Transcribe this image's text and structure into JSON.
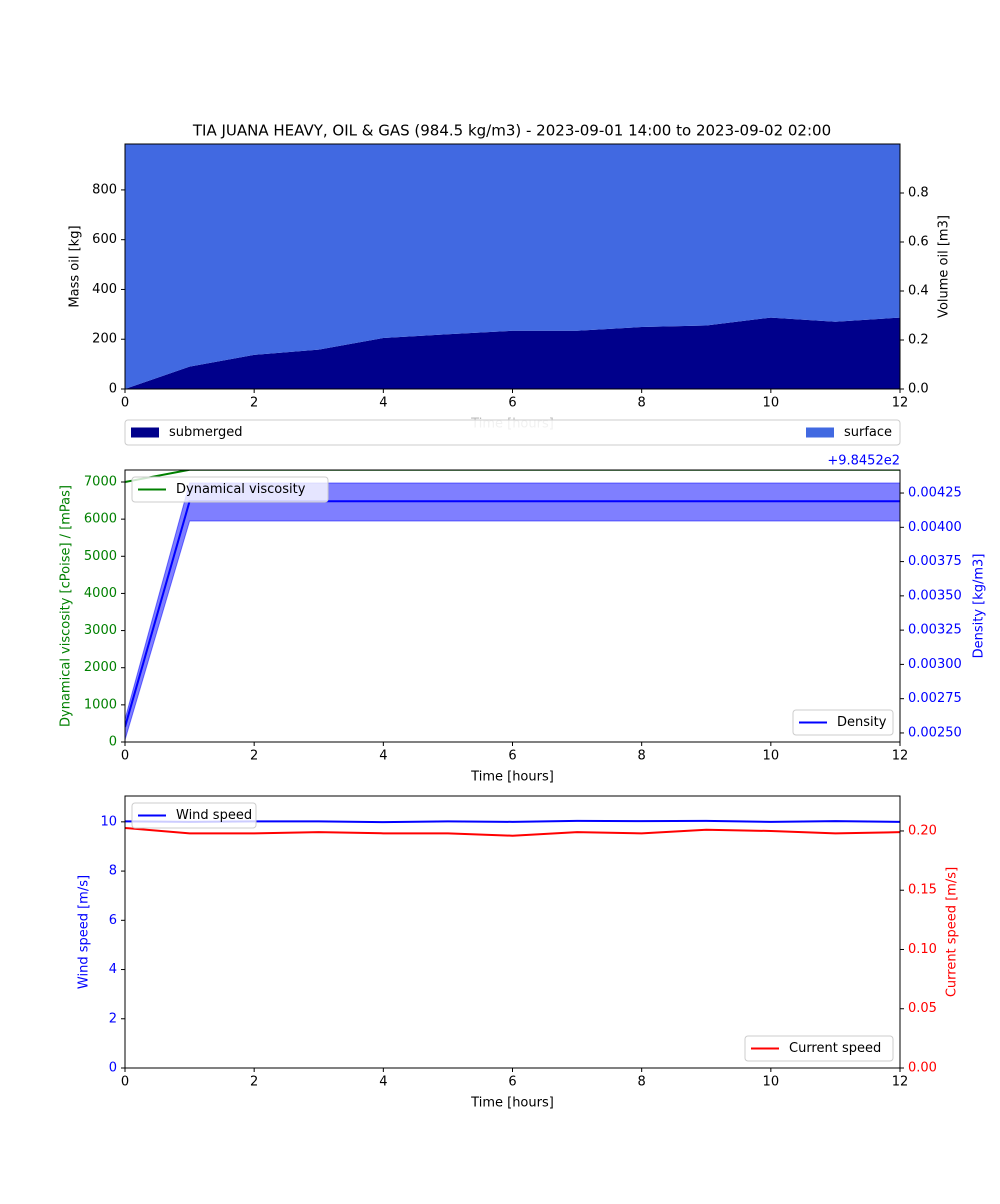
{
  "chart_data": [
    {
      "type": "area",
      "stacked": true,
      "title": "TIA JUANA HEAVY, OIL & GAS (984.5 kg/m3) - 2023-09-01 14:00 to 2023-09-02 02:00",
      "xlabel": "Time  [hours]",
      "ylabel": "Mass oil  [kg]",
      "y2label": "Volume oil [m3]",
      "x": [
        0,
        1,
        2,
        3,
        4,
        5,
        6,
        7,
        8,
        9,
        10,
        11,
        12
      ],
      "series": [
        {
          "name": "submerged",
          "color": "#00008b",
          "legend_loc": "below left",
          "values": [
            0,
            90,
            137,
            158,
            205,
            220,
            234,
            234,
            249,
            255,
            287,
            270,
            287
          ]
        },
        {
          "name": "surface",
          "color": "#4169e1",
          "legend_loc": "below right",
          "values": [
            984.5,
            894.5,
            847.5,
            826.5,
            779.5,
            764.5,
            750.5,
            750.5,
            735.5,
            729.5,
            697.5,
            714.5,
            697.5
          ]
        }
      ],
      "xlim": [
        0,
        12
      ],
      "xticks": [
        0,
        2,
        4,
        6,
        8,
        10,
        12
      ],
      "ylim": [
        0,
        984.5
      ],
      "yticks": [
        0,
        200,
        400,
        600,
        800
      ],
      "y2lim": [
        0,
        1
      ],
      "y2ticks": [
        {
          "value": 0,
          "label": "0.0"
        },
        0.2,
        0.4,
        0.6,
        0.8
      ],
      "ycolor": "#000000",
      "y2color": "#000000"
    },
    {
      "type": "line",
      "xlabel": "Time [hours]",
      "ylabel": "Dynamical viscosity  [cPoise] / [mPas]",
      "y2label": "Density  [kg/m3]",
      "y2_offset_label": "+9.8452e2",
      "x": [
        0,
        1,
        2,
        3,
        4,
        5,
        6,
        7,
        8,
        9,
        10,
        11,
        12
      ],
      "series": [
        {
          "name": "Dynamical viscosity",
          "color": "#008000",
          "legend_loc": "upper left",
          "values": [
            7000,
            7330,
            7330,
            7330,
            7330,
            7330,
            7330,
            7330,
            7330,
            7330,
            7330,
            7330,
            7330
          ]
        },
        {
          "name": "Density",
          "color": "#0000ff",
          "axis": "y2",
          "legend_loc": "lower right",
          "values": [
            0.002544,
            0.00419,
            0.00419,
            0.00419,
            0.00419,
            0.00419,
            0.00419,
            0.00419,
            0.00419,
            0.00419,
            0.00419,
            0.00419,
            0.00419
          ],
          "lower": [
            0.00245,
            0.004046,
            0.004046,
            0.004046,
            0.004046,
            0.004046,
            0.004046,
            0.004046,
            0.004046,
            0.004046,
            0.004046,
            0.004046,
            0.004046
          ],
          "upper": [
            0.0026,
            0.004323,
            0.004323,
            0.004323,
            0.004323,
            0.004323,
            0.004323,
            0.004323,
            0.004323,
            0.004323,
            0.004323,
            0.004323,
            0.004323
          ]
        }
      ],
      "xlim": [
        0,
        12
      ],
      "xticks": [
        0,
        2,
        4,
        6,
        8,
        10,
        12
      ],
      "ylim": [
        0,
        7323
      ],
      "yticks": [
        0,
        1000,
        2000,
        3000,
        4000,
        5000,
        6000,
        7000
      ],
      "y2lim": [
        0.002434,
        0.004418
      ],
      "y2ticks": [
        {
          "value": 0.0025,
          "label": "0.00250"
        },
        0.00275,
        {
          "value": 0.003,
          "label": "0.00300"
        },
        0.00325,
        {
          "value": 0.0035,
          "label": "0.00350"
        },
        0.00375,
        {
          "value": 0.004,
          "label": "0.00400"
        },
        0.00425
      ],
      "ycolor": "#008000",
      "y2color": "#0000ff"
    },
    {
      "type": "line",
      "xlabel": "Time  [hours]",
      "ylabel": "Wind speed  [m/s]",
      "y2label": "Current speed  [m/s]",
      "x": [
        0,
        1,
        2,
        3,
        4,
        5,
        6,
        7,
        8,
        9,
        10,
        11,
        12
      ],
      "series": [
        {
          "name": "Wind speed",
          "color": "#0000ff",
          "legend_loc": "upper left",
          "values": [
            10.02,
            10.0,
            10.02,
            10.02,
            9.99,
            10.02,
            10.0,
            10.04,
            10.03,
            10.04,
            10.0,
            10.03,
            10.0
          ]
        },
        {
          "name": "Current speed",
          "color": "#ff0000",
          "axis": "y2",
          "legend_loc": "lower right",
          "values": [
            0.2025,
            0.198,
            0.198,
            0.199,
            0.198,
            0.198,
            0.196,
            0.199,
            0.198,
            0.201,
            0.2,
            0.198,
            0.199
          ]
        }
      ],
      "xlim": [
        0,
        12
      ],
      "xticks": [
        0,
        2,
        4,
        6,
        8,
        10,
        12
      ],
      "ylim": [
        0,
        11.05
      ],
      "yticks": [
        0,
        2,
        4,
        6,
        8,
        10
      ],
      "y2lim": [
        0,
        0.2295
      ],
      "y2ticks": [
        {
          "value": 0,
          "label": "0.00"
        },
        0.05,
        {
          "value": 0.1,
          "label": "0.10"
        },
        0.15,
        {
          "value": 0.2,
          "label": "0.20"
        }
      ],
      "ycolor": "#0000ff",
      "y2color": "#ff0000"
    }
  ]
}
